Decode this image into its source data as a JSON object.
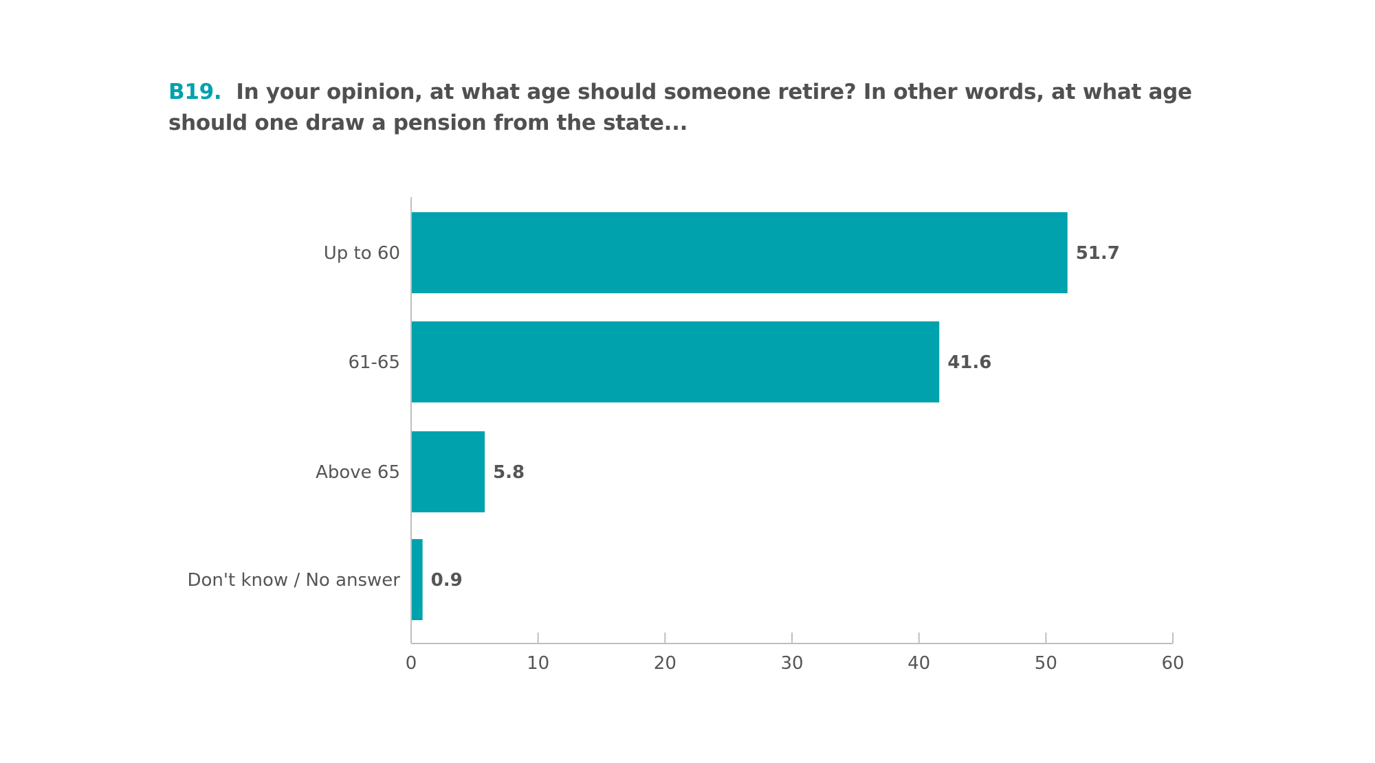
{
  "title": {
    "code": "B19",
    "text": "In your opinion, at what age should someone retire? In other words, at what age should one draw a pension from the state..."
  },
  "colors": {
    "bar": "#00a2ad",
    "accent": "#00a2ad",
    "text": "#555555",
    "axis": "#bfbfbf"
  },
  "chart_data": {
    "type": "bar",
    "orientation": "horizontal",
    "categories": [
      "Up to 60",
      "61-65",
      "Above 65",
      "Don't know / No answer"
    ],
    "values": [
      51.7,
      41.6,
      5.8,
      0.9
    ],
    "value_labels": [
      "51.7",
      "41.6",
      "5.8",
      "0.9"
    ],
    "xlim": [
      0,
      60
    ],
    "xticks": [
      0,
      10,
      20,
      30,
      40,
      50,
      60
    ],
    "xtick_labels": [
      "0",
      "10",
      "20",
      "30",
      "40",
      "50",
      "60"
    ],
    "grid": false,
    "legend": "none"
  }
}
